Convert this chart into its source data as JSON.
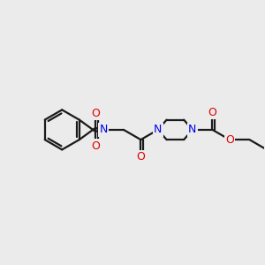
{
  "background_color": "#ebebeb",
  "bond_color": "#1a1a1a",
  "N_color": "#0000ee",
  "O_color": "#dd0000",
  "line_width": 1.6,
  "font_size": 9.0,
  "fig_width": 3.0,
  "fig_height": 3.0,
  "dpi": 100,
  "xlim": [
    -0.5,
    9.0
  ],
  "ylim": [
    0.5,
    5.5
  ]
}
